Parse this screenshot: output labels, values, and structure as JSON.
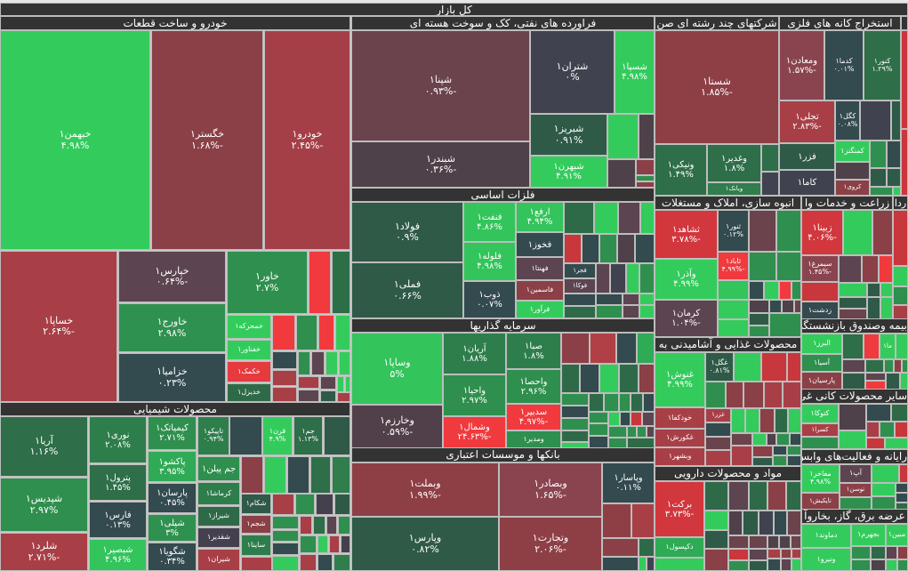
{
  "title": "کل بازار",
  "sectors": [
    {
      "title": "خودرو و ساخت قطعات",
      "tiles": [
        {
          "symbol": "خبهمن۱",
          "change": "۴.۹۸%",
          "color": "#33cc5c"
        },
        {
          "symbol": "خگستر۱",
          "change": "-۱.۶۸%",
          "color": "#8a4046"
        },
        {
          "symbol": "خودرو۱",
          "change": "-۲.۴۵%",
          "color": "#a53f47"
        },
        {
          "symbol": "خساپا۱",
          "change": "-۲.۶۴%",
          "color": "#a83f47"
        },
        {
          "symbol": "خپارس۱",
          "change": "-۰.۶۴%",
          "color": "#5c4450"
        },
        {
          "symbol": "خاورج۱",
          "change": "۲.۹۸%",
          "color": "#2f9150"
        },
        {
          "symbol": "خزامیا۱",
          "change": "۰.۲۳%",
          "color": "#334a4e"
        },
        {
          "symbol": "خاور۱",
          "change": "۲.۷%",
          "color": "#2f8f4e"
        },
        {
          "symbol": "خمحرکه۱",
          "color": "#33cc5c"
        },
        {
          "symbol": "خفناور۱",
          "color": "#33cc5c"
        },
        {
          "symbol": "خکمک۱",
          "color": "#e53a3e"
        },
        {
          "symbol": "خدیزل۱",
          "color": "#2f6a48"
        }
      ]
    },
    {
      "title": "محصولات شیمیایی",
      "tiles": [
        {
          "symbol": "آریا۱",
          "change": "۱.۱۶%",
          "color": "#2e6e48"
        },
        {
          "symbol": "شپدیس۱",
          "change": "۲.۹۷%",
          "color": "#2f8f4e"
        },
        {
          "symbol": "شلرد۱",
          "change": "-۲.۷۱%",
          "color": "#a83f47"
        },
        {
          "symbol": "نوری۱",
          "change": "۲.۰۸%",
          "color": "#2e7e4c"
        },
        {
          "symbol": "پترول۱",
          "change": "۱.۴۵%",
          "color": "#2e6e48"
        },
        {
          "symbol": "فارس۱",
          "change": "۰.۱۳%",
          "color": "#334a4e"
        },
        {
          "symbol": "شبصیر۱",
          "change": "۴.۹۶%",
          "color": "#33c45c"
        },
        {
          "symbol": "کیمیاتک۱",
          "change": "۲.۷۱%",
          "color": "#2f8f4e"
        },
        {
          "symbol": "پاکشو۱",
          "change": "۳.۹۵%",
          "color": "#2faa55"
        },
        {
          "symbol": "پارسان۱",
          "change": "۰.۴۵%",
          "color": "#334a4e"
        },
        {
          "symbol": "شپلی۱",
          "change": "۳%",
          "color": "#2f9150"
        },
        {
          "symbol": "شگویا۱",
          "change": "۰.۳۴%",
          "color": "#334a4e"
        },
        {
          "symbol": "تاپیکو۱",
          "change": "۰.۹۴%",
          "color": "#2e7e4c"
        },
        {
          "symbol": "جم پیلن۱",
          "color": "#2f8f4e"
        },
        {
          "symbol": "کرماشا۱",
          "color": "#2e7e4c"
        },
        {
          "symbol": "شیراز۱",
          "color": "#2f6a48"
        },
        {
          "symbol": "شقدیر۱",
          "color": "#45404e"
        },
        {
          "symbol": "شیران۱",
          "color": "#a83f47"
        },
        {
          "symbol": "قرن۱",
          "change": "۴.۹%",
          "color": "#33cc5c"
        },
        {
          "symbol": "جم۱",
          "change": "۱.۱۳%",
          "color": "#2e6e48"
        },
        {
          "symbol": "شکام۱",
          "color": "#2f5a48"
        },
        {
          "symbol": "شجم۱",
          "color": "#8a4046"
        },
        {
          "symbol": "ساینا۱",
          "color": "#2e7e4c"
        }
      ]
    },
    {
      "title": "فراورده های نفتی، کک و سوخت هسته ای",
      "tiles": [
        {
          "symbol": "شپنا۱",
          "change": "-۰.۹۳%",
          "color": "#6a434c"
        },
        {
          "symbol": "شبندر۱",
          "change": "-۰.۳۶%",
          "color": "#4f4149"
        },
        {
          "symbol": "شتران۱",
          "change": "۰%",
          "color": "#40434f"
        },
        {
          "symbol": "شسپا۱",
          "change": "۴.۹۸%",
          "color": "#33cc5c"
        },
        {
          "symbol": "شبریز۱",
          "change": "۰.۹۱%",
          "color": "#2f5a48"
        },
        {
          "symbol": "شبهرن۱",
          "change": "۴.۹۱%",
          "color": "#33cc5c"
        }
      ]
    },
    {
      "title": "فلزات اساسی",
      "tiles": [
        {
          "symbol": "فولاد۱",
          "change": "۰.۹%",
          "color": "#2f5a48"
        },
        {
          "symbol": "فملی۱",
          "change": "۰.۶۶%",
          "color": "#2f5a48"
        },
        {
          "symbol": "فنفت۱",
          "change": "۴.۸۶%",
          "color": "#33c45c"
        },
        {
          "symbol": "فلوله۱",
          "change": "۴.۹۸%",
          "color": "#33c45c"
        },
        {
          "symbol": "ذوب۱",
          "change": "۰.۰۷%",
          "color": "#334a4e"
        },
        {
          "symbol": "ارفع۱",
          "change": "۴.۹۴%",
          "color": "#33c45c"
        },
        {
          "symbol": "فخوز۱",
          "color": "#334a4e"
        },
        {
          "symbol": "فهنتا۱",
          "color": "#5c4450"
        },
        {
          "symbol": "فاسمین۱",
          "color": "#8a4046"
        },
        {
          "symbol": "فرآور۱",
          "color": "#33cc5c"
        },
        {
          "symbol": "فجر۱",
          "color": "#334a4e"
        },
        {
          "symbol": "فوکا۱",
          "color": "#5c4450"
        }
      ]
    },
    {
      "title": "سرمایه گذاریها",
      "tiles": [
        {
          "symbol": "وساپا۱",
          "change": "۵%",
          "color": "#33c45c"
        },
        {
          "symbol": "وخارزم۱",
          "change": "-۰.۵۹%",
          "color": "#51404a"
        },
        {
          "symbol": "آریان۱",
          "change": "۱.۸۸%",
          "color": "#2e7e4c"
        },
        {
          "symbol": "واحیا۱",
          "change": "۲.۹۷%",
          "color": "#2f8f4e"
        },
        {
          "symbol": "وشمال۱",
          "change": "-۲۴.۶۳%",
          "color": "#f03a3e"
        },
        {
          "symbol": "صبا۱",
          "change": "۱.۸%",
          "color": "#2e7e4c"
        },
        {
          "symbol": "واحصا۱",
          "change": "۲.۹۶%",
          "color": "#2f8f4e"
        },
        {
          "symbol": "سدبیر۱",
          "change": "-۴.۹۷%",
          "color": "#f03a3e"
        },
        {
          "symbol": "ومدیر۱",
          "color": "#2f8f4e"
        }
      ]
    },
    {
      "title": "بانکها و موسسات اعتباری",
      "tiles": [
        {
          "symbol": "وبملت۱",
          "change": "-۱.۹۹%",
          "color": "#8e3f46"
        },
        {
          "symbol": "وپارس۱",
          "change": "۰.۸۲%",
          "color": "#2f5a48"
        },
        {
          "symbol": "وبصادر۱",
          "change": "-۱.۶۵%",
          "color": "#8a4450"
        },
        {
          "symbol": "وتجارت۱",
          "change": "-۲.۰۶%",
          "color": "#8e3f46"
        },
        {
          "symbol": "وپاسار۱",
          "change": "۰.۱۱%",
          "color": "#334a4e"
        }
      ]
    },
    {
      "title": "شرکتهای چند رشته ای صن",
      "tiles": [
        {
          "symbol": "شستا۱",
          "change": "-۱.۸۵%",
          "color": "#8e3f46"
        },
        {
          "symbol": "ونیکی۱",
          "change": "۱.۴۹%",
          "color": "#2e6e48"
        },
        {
          "symbol": "وغدیر۱",
          "change": "۱.۸%",
          "color": "#2e6e48"
        },
        {
          "symbol": "وبانک۱",
          "color": "#2f7e4c"
        }
      ]
    },
    {
      "title": "استخراج کانه های فلزی",
      "tiles": [
        {
          "symbol": "ومعادن۱",
          "change": "-۱.۵۷%",
          "color": "#8a4450"
        },
        {
          "symbol": "کدما۱",
          "change": "۰.۰۱%",
          "color": "#334a4e"
        },
        {
          "symbol": "کنور۱",
          "change": "۱.۲۹%",
          "color": "#2e6e48"
        },
        {
          "symbol": "تجلی۱",
          "change": "-۲.۸۳%",
          "color": "#a83f47"
        },
        {
          "symbol": "کگل۱",
          "change": "۰.۰۸%",
          "color": "#334a4e"
        },
        {
          "symbol": "فزر۱",
          "color": "#2f5a48"
        },
        {
          "symbol": "کاما۱",
          "color": "#40434f"
        },
        {
          "symbol": "کمنگنز۱",
          "color": "#33cc5c"
        },
        {
          "symbol": "کروی۱",
          "color": "#8a4046"
        }
      ]
    },
    {
      "title": "انبوه سازی، املاک و مستغلات",
      "tiles": [
        {
          "symbol": "ثشاهد۱",
          "change": "-۳.۷۸%",
          "color": "#d2373e"
        },
        {
          "symbol": "وآذر۱",
          "change": "۴.۹۹%",
          "color": "#33cc5c"
        },
        {
          "symbol": "کرمان۱",
          "change": "-۱.۰۴%",
          "color": "#5c4450"
        },
        {
          "symbol": "ثنور۱",
          "change": "۰.۱۲%",
          "color": "#334a4e"
        },
        {
          "symbol": "ثاباد۱",
          "change": "-۴.۹۹%",
          "color": "#f03a3e"
        }
      ]
    },
    {
      "title": "زراعت و خدمات وا",
      "tiles": [
        {
          "symbol": "زبینا۱",
          "change": "-۴.۰۶%",
          "color": "#d2373e"
        },
        {
          "symbol": "سیمرغ۱",
          "change": "-۱.۴۵%",
          "color": "#8a4450"
        },
        {
          "symbol": "زدشت۱",
          "color": "#334a4e"
        }
      ]
    },
    {
      "title": "ردا",
      "tiles": []
    },
    {
      "title": "بیمه وصندوق بازنشستگی",
      "tiles": [
        {
          "symbol": "البرز۱",
          "color": "#33cc5c"
        },
        {
          "symbol": "آسیا۱",
          "color": "#2f8f4e"
        },
        {
          "symbol": "پارسیان۱",
          "color": "#8a4046"
        },
        {
          "symbol": "ما۱",
          "color": "#33cc5c"
        }
      ]
    },
    {
      "title": "محصولات غذایی و آشامیدنی به",
      "tiles": [
        {
          "symbol": "غنوش۱",
          "change": "۴.۹۹%",
          "color": "#33cc5c"
        },
        {
          "symbol": "غگل۱",
          "change": "۰.۸۱%",
          "color": "#2f5a48"
        },
        {
          "symbol": "خودکفا۱",
          "color": "#a83f47"
        },
        {
          "symbol": "غکورش۱",
          "color": "#a83f47"
        },
        {
          "symbol": "وبشهر۱",
          "color": "#a83f47"
        },
        {
          "symbol": "غزر۱",
          "color": "#a83f47"
        }
      ]
    },
    {
      "title": "مواد و محصولات دارویی",
      "tiles": [
        {
          "symbol": "برکت۱",
          "change": "-۳.۷۳%",
          "color": "#d2373e"
        },
        {
          "symbol": "دکپسول۱",
          "color": "#2faa55"
        }
      ]
    },
    {
      "title": "سایر محصولات کانی غی",
      "tiles": [
        {
          "symbol": "کتوکا۱",
          "color": "#33cc5c"
        },
        {
          "symbol": "کسرا۱",
          "color": "#a83f47"
        }
      ]
    },
    {
      "title": "رایانه و فعالیت‌های وابس",
      "tiles": [
        {
          "symbol": "مفاخر۱",
          "change": "۴.۹۸%",
          "color": "#33cc5c"
        },
        {
          "symbol": "آپ۱",
          "color": "#5c4450"
        },
        {
          "symbol": "توسن۱",
          "color": "#8a4046"
        },
        {
          "symbol": "تاپکیش۱",
          "color": "#8a4046"
        }
      ]
    },
    {
      "title": "عرضه برق، گاز، بخاروآ",
      "tiles": [
        {
          "symbol": "دماوند۱",
          "color": "#33cc5c"
        },
        {
          "symbol": "بجهرم۱",
          "color": "#33cc5c"
        },
        {
          "symbol": "مبین۱",
          "color": "#33cc5c"
        },
        {
          "symbol": "ونیرو۱",
          "color": "#33cc5c"
        }
      ]
    }
  ]
}
